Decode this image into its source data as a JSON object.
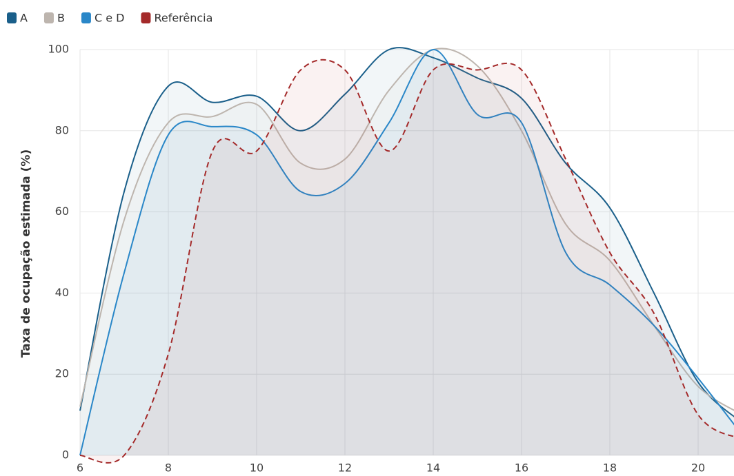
{
  "chart_data": {
    "type": "line",
    "y_label": "Taxa de ocupação estimada (%)",
    "x": [
      6,
      7,
      8,
      9,
      10,
      11,
      12,
      13,
      14,
      15,
      16,
      17,
      18,
      19,
      20,
      21
    ],
    "series": [
      {
        "name": "A",
        "color": "#1a5f8a",
        "values": [
          11,
          65,
          91,
          87,
          88.5,
          80,
          89,
          100,
          98,
          93,
          88,
          72,
          61,
          40,
          18,
          8
        ]
      },
      {
        "name": "B",
        "color": "#bdb5ae",
        "values": [
          12,
          58,
          82,
          83.5,
          86.5,
          72,
          73,
          90,
          100,
          96,
          80,
          57,
          48,
          32,
          17,
          10
        ]
      },
      {
        "name": "C e D",
        "color": "#2a87c8",
        "values": [
          0,
          45,
          79,
          81,
          79,
          65,
          67,
          82,
          100,
          84,
          82,
          50,
          42,
          32,
          19,
          5
        ]
      },
      {
        "name": "Referência",
        "color": "#a42a2a",
        "dashed": true,
        "values": [
          0,
          0,
          25,
          75,
          75,
          95,
          95,
          75,
          95,
          95,
          95,
          73,
          50,
          35,
          10,
          4
        ]
      }
    ],
    "xlim": [
      6,
      21
    ],
    "ylim": [
      0,
      100
    ],
    "xticks": [
      6,
      8,
      10,
      12,
      14,
      16,
      18,
      20
    ],
    "yticks": [
      0,
      20,
      40,
      60,
      80,
      100
    ],
    "grid": true,
    "legend": "top-left"
  }
}
